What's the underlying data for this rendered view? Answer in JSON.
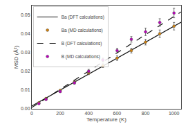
{
  "chart_data": {
    "type": "scatter",
    "title": "",
    "xlabel": "Temperature (K)",
    "ylabel": "MSD (Å²)",
    "xlim": [
      0,
      1050
    ],
    "ylim": [
      0,
      0.055
    ],
    "xticks": [
      0,
      200,
      400,
      600,
      800,
      1000
    ],
    "yticks": [
      {
        "value": 0,
        "label": "0.00"
      },
      0.01,
      0.02,
      0.03,
      0.04,
      0.05
    ],
    "grid": false,
    "legend": "upper left",
    "series": [
      {
        "name": "Ba (DFT calculations)",
        "type": "line",
        "line_style": "solid",
        "color": "#111111",
        "x": [
          0,
          1050
        ],
        "values": [
          0.0015,
          0.046125
        ]
      },
      {
        "name": "Ba (MD calculations)",
        "type": "scatter",
        "marker": "circle",
        "color": "#D4820A",
        "x": [
          50,
          100,
          200,
          300,
          400,
          500,
          600,
          700,
          800,
          900,
          1000
        ],
        "values": [
          0.0032,
          0.0055,
          0.0098,
          0.0143,
          0.019,
          0.023,
          0.027,
          0.031,
          0.0355,
          0.04,
          0.044
        ],
        "errors": [
          0.0003,
          0.0004,
          0.0005,
          0.0007,
          0.0008,
          0.001,
          0.0012,
          0.0013,
          0.0015,
          0.002,
          0.002
        ]
      },
      {
        "name": "B (DFT calculations)",
        "type": "line",
        "line_style": "dash",
        "color": "#111111",
        "x": [
          0,
          1050
        ],
        "values": [
          0.0007,
          0.051625
        ]
      },
      {
        "name": "B (MD calculations)",
        "type": "scatter",
        "marker": "circle",
        "color": "#BB00BB",
        "x": [
          50,
          100,
          200,
          300,
          400,
          500,
          600,
          700,
          800,
          900,
          1000
        ],
        "values": [
          0.0028,
          0.005,
          0.0092,
          0.0138,
          0.02,
          0.026,
          0.031,
          0.037,
          0.041,
          0.046,
          0.051
        ],
        "errors": [
          0.0003,
          0.0004,
          0.0005,
          0.0007,
          0.001,
          0.001,
          0.0013,
          0.0015,
          0.002,
          0.002,
          0.0025
        ]
      }
    ]
  }
}
